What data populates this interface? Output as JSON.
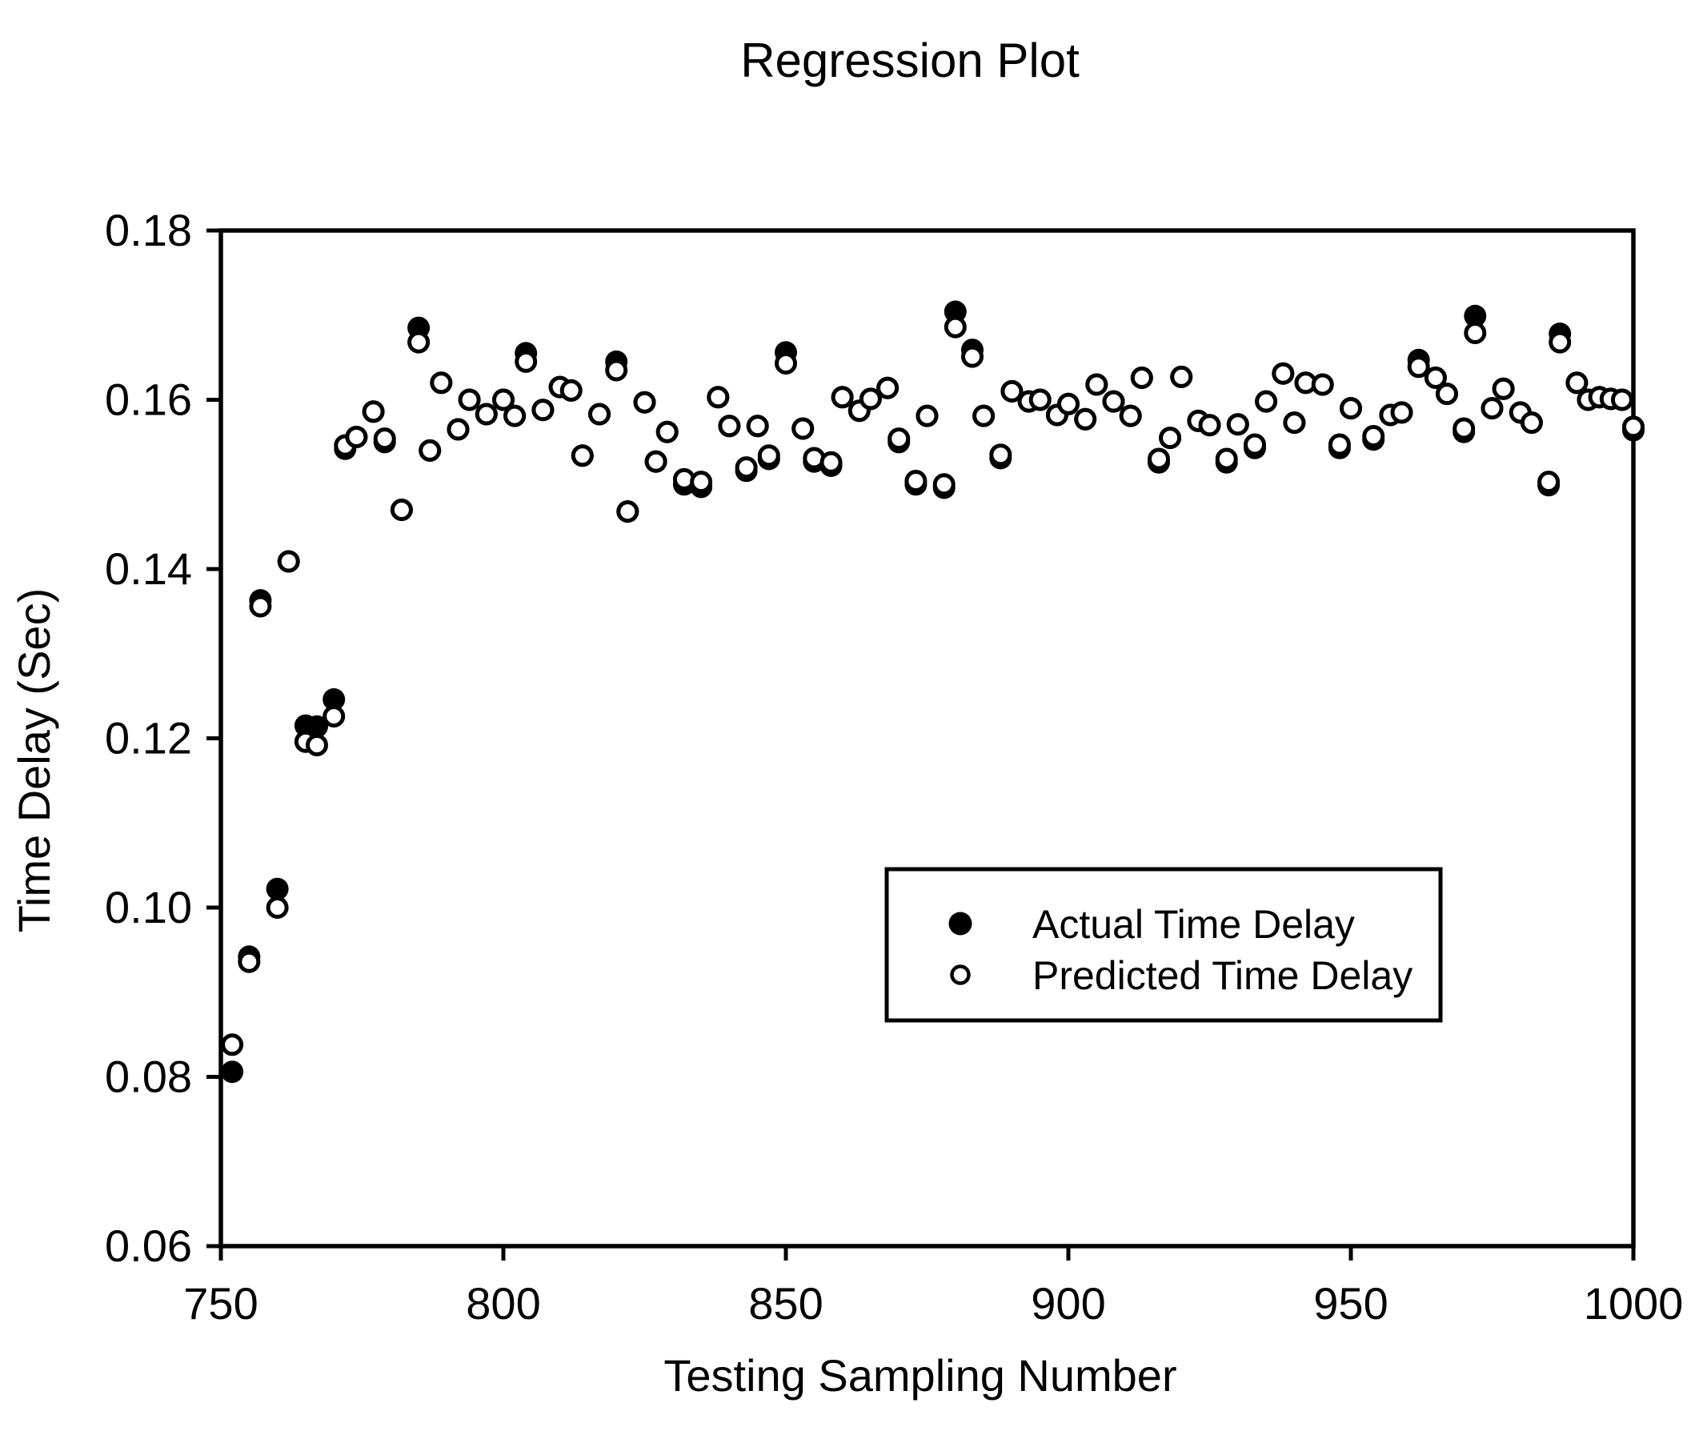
{
  "page": {
    "background": "#ffffff",
    "foreground": "#000000"
  },
  "chart_data": {
    "type": "scatter",
    "title": "Regression Plot",
    "xlabel": "Testing Sampling Number",
    "ylabel": "Time Delay (Sec)",
    "xlim": [
      750,
      1000
    ],
    "ylim": [
      0.06,
      0.18
    ],
    "grid": false,
    "frame_box": true,
    "xticks": {
      "values": [
        750,
        800,
        850,
        900,
        950,
        1000
      ],
      "labels": [
        "750",
        "800",
        "850",
        "900",
        "950",
        "1000"
      ]
    },
    "yticks": {
      "values": [
        0.18,
        0.16,
        0.14,
        0.12,
        0.1,
        0.08,
        0.06
      ],
      "labels": [
        "0.18",
        "0.16",
        "0.14",
        "0.12",
        "0.10",
        "0.08",
        "0.06"
      ]
    },
    "legend": {
      "position": "inside-lower-right",
      "items": [
        {
          "label": "Actual Time Delay",
          "marker": "filled-circle",
          "color": "#000000"
        },
        {
          "label": "Predicted Time Delay",
          "marker": "open-circle",
          "color": "#000000"
        }
      ]
    },
    "x": [
      752,
      755,
      757,
      760,
      762,
      765,
      767,
      770,
      772,
      774,
      777,
      779,
      782,
      785,
      787,
      789,
      792,
      794,
      797,
      800,
      802,
      804,
      807,
      810,
      812,
      814,
      817,
      820,
      822,
      825,
      827,
      829,
      832,
      835,
      838,
      840,
      843,
      845,
      847,
      850,
      853,
      855,
      858,
      860,
      863,
      865,
      868,
      870,
      873,
      875,
      878,
      880,
      883,
      885,
      888,
      890,
      893,
      895,
      898,
      900,
      903,
      905,
      908,
      911,
      913,
      916,
      918,
      920,
      923,
      925,
      928,
      930,
      933,
      935,
      938,
      940,
      942,
      945,
      948,
      950,
      954,
      957,
      959,
      962,
      965,
      967,
      970,
      972,
      975,
      977,
      980,
      982,
      985,
      987,
      990,
      992,
      994,
      996,
      998,
      1000
    ],
    "series": [
      {
        "name": "Actual Time Delay",
        "marker": "filled-circle",
        "values": [
          0.0806,
          0.0942,
          0.1363,
          0.1022,
          0.1409,
          0.1215,
          0.1214,
          0.1246,
          0.1542,
          0.1556,
          0.1586,
          0.155,
          0.147,
          0.1685,
          0.154,
          0.162,
          0.1565,
          0.16,
          0.1583,
          0.16,
          0.1581,
          0.1655,
          0.1588,
          0.1615,
          0.1611,
          0.1534,
          0.1583,
          0.1645,
          0.1468,
          0.1597,
          0.1527,
          0.1562,
          0.15,
          0.1497,
          0.1603,
          0.1569,
          0.1516,
          0.1569,
          0.153,
          0.1656,
          0.1566,
          0.1527,
          0.1522,
          0.1603,
          0.1587,
          0.1601,
          0.1614,
          0.155,
          0.15,
          0.1581,
          0.1496,
          0.1704,
          0.1659,
          0.1581,
          0.1531,
          0.161,
          0.1598,
          0.16,
          0.1582,
          0.1595,
          0.1577,
          0.1618,
          0.1598,
          0.1581,
          0.1626,
          0.1526,
          0.1555,
          0.1627,
          0.1575,
          0.157,
          0.1526,
          0.1571,
          0.1543,
          0.1598,
          0.1631,
          0.1573,
          0.162,
          0.1618,
          0.1543,
          0.159,
          0.1553,
          0.1582,
          0.1585,
          0.1647,
          0.1626,
          0.1607,
          0.1562,
          0.1699,
          0.159,
          0.1613,
          0.1585,
          0.1573,
          0.1499,
          0.1678,
          0.162,
          0.16,
          0.1603,
          0.1601,
          0.16,
          0.1564
        ]
      },
      {
        "name": "Predicted Time Delay",
        "marker": "open-circle",
        "values": [
          0.0838,
          0.0936,
          0.1356,
          0.1,
          0.1409,
          0.1196,
          0.1192,
          0.1226,
          0.1546,
          0.1556,
          0.1586,
          0.1554,
          0.147,
          0.1668,
          0.154,
          0.162,
          0.1565,
          0.16,
          0.1583,
          0.16,
          0.1581,
          0.1645,
          0.1588,
          0.1615,
          0.1611,
          0.1534,
          0.1583,
          0.1635,
          0.1468,
          0.1597,
          0.1527,
          0.1562,
          0.1506,
          0.1503,
          0.1603,
          0.1569,
          0.152,
          0.1569,
          0.1534,
          0.1643,
          0.1566,
          0.1531,
          0.1526,
          0.1603,
          0.1587,
          0.1601,
          0.1614,
          0.1554,
          0.1504,
          0.1581,
          0.15,
          0.1686,
          0.1651,
          0.1581,
          0.1535,
          0.161,
          0.1598,
          0.16,
          0.1582,
          0.1595,
          0.1577,
          0.1618,
          0.1598,
          0.1581,
          0.1626,
          0.153,
          0.1555,
          0.1627,
          0.1575,
          0.157,
          0.153,
          0.1571,
          0.1547,
          0.1598,
          0.1631,
          0.1573,
          0.162,
          0.1618,
          0.1547,
          0.159,
          0.1557,
          0.1582,
          0.1585,
          0.1639,
          0.1626,
          0.1607,
          0.1566,
          0.1679,
          0.159,
          0.1613,
          0.1585,
          0.1573,
          0.1503,
          0.1668,
          0.162,
          0.16,
          0.1603,
          0.1601,
          0.16,
          0.1568
        ]
      }
    ]
  }
}
